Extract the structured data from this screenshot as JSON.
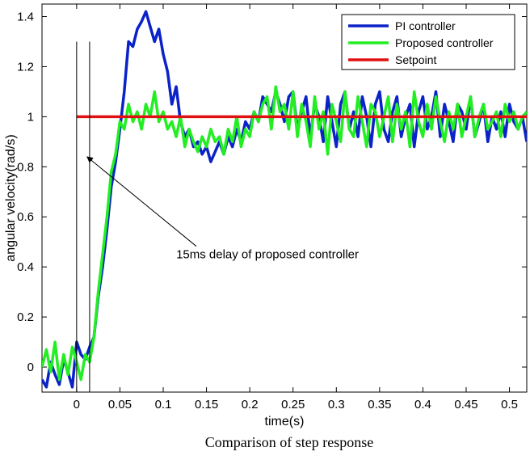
{
  "chart_data": {
    "type": "line",
    "title": "",
    "caption": "Comparison of step response",
    "xlabel": "time(s)",
    "ylabel": "angular velocity(rad/s)",
    "xlim": [
      -0.04,
      0.52
    ],
    "ylim": [
      -0.1,
      1.45
    ],
    "xticks": [
      0,
      0.05,
      0.1,
      0.15,
      0.2,
      0.25,
      0.3,
      0.35,
      0.4,
      0.45,
      0.5
    ],
    "xtick_labels": [
      "0",
      "0.05",
      "0.1",
      "0.15",
      "0.2",
      "0.25",
      "0.3",
      "0.35",
      "0.4",
      "0.45",
      "0.5"
    ],
    "yticks": [
      0,
      0.2,
      0.4,
      0.6,
      0.8,
      1,
      1.2,
      1.4
    ],
    "ytick_labels": [
      "0",
      "0.2",
      "0.4",
      "0.6",
      "0.8",
      "1",
      "1.2",
      "1.4"
    ],
    "grid": false,
    "legend_position": "top-right",
    "series": [
      {
        "name": "PI controller",
        "color": "#0a22c8",
        "x": [
          -0.04,
          -0.035,
          -0.03,
          -0.025,
          -0.02,
          -0.015,
          -0.01,
          -0.005,
          0,
          0.005,
          0.01,
          0.015,
          0.02,
          0.025,
          0.03,
          0.035,
          0.04,
          0.045,
          0.05,
          0.055,
          0.06,
          0.065,
          0.07,
          0.075,
          0.08,
          0.085,
          0.09,
          0.095,
          0.1,
          0.105,
          0.11,
          0.115,
          0.12,
          0.125,
          0.13,
          0.135,
          0.14,
          0.145,
          0.15,
          0.155,
          0.16,
          0.165,
          0.17,
          0.175,
          0.18,
          0.185,
          0.19,
          0.195,
          0.2,
          0.205,
          0.21,
          0.215,
          0.22,
          0.225,
          0.23,
          0.235,
          0.24,
          0.245,
          0.25,
          0.255,
          0.26,
          0.265,
          0.27,
          0.275,
          0.28,
          0.285,
          0.29,
          0.295,
          0.3,
          0.305,
          0.31,
          0.315,
          0.32,
          0.325,
          0.33,
          0.335,
          0.34,
          0.345,
          0.35,
          0.355,
          0.36,
          0.365,
          0.37,
          0.375,
          0.38,
          0.385,
          0.39,
          0.395,
          0.4,
          0.405,
          0.41,
          0.415,
          0.42,
          0.425,
          0.43,
          0.435,
          0.44,
          0.445,
          0.45,
          0.455,
          0.46,
          0.465,
          0.47,
          0.475,
          0.48,
          0.485,
          0.49,
          0.495,
          0.5,
          0.505,
          0.51,
          0.515,
          0.52
        ],
        "y": [
          -0.05,
          -0.08,
          0.02,
          -0.03,
          -0.07,
          0.03,
          -0.02,
          -0.08,
          0.1,
          0.05,
          0.03,
          0.08,
          0.12,
          0.28,
          0.4,
          0.55,
          0.72,
          0.82,
          0.95,
          1.1,
          1.3,
          1.28,
          1.35,
          1.38,
          1.42,
          1.36,
          1.3,
          1.35,
          1.25,
          1.18,
          1.05,
          1.12,
          0.98,
          0.92,
          0.95,
          0.88,
          0.9,
          0.85,
          0.88,
          0.82,
          0.86,
          0.9,
          0.85,
          0.92,
          0.88,
          0.95,
          0.9,
          0.98,
          0.95,
          1.02,
          0.98,
          1.08,
          1.05,
          1.02,
          1.1,
          1.05,
          0.98,
          1.08,
          1.1,
          0.95,
          1.02,
          1.08,
          0.92,
          1.05,
          1,
          0.9,
          1.08,
          0.98,
          0.88,
          1.05,
          1.1,
          0.95,
          1.02,
          0.92,
          1.08,
          1,
          0.88,
          1.05,
          1.1,
          0.95,
          0.9,
          1.02,
          1.08,
          0.92,
          1,
          1.05,
          0.88,
          1.02,
          1.08,
          0.95,
          1,
          1.1,
          0.92,
          1.05,
          0.98,
          0.9,
          1.05,
          1.02,
          0.95,
          1.08,
          0.92,
          0.98,
          1.05,
          0.9,
          1,
          0.95,
          1.02,
          0.92,
          1.05,
          0.98,
          0.95,
          1,
          0.9
        ]
      },
      {
        "name": "Proposed controller",
        "color": "#22ee22",
        "x": [
          -0.04,
          -0.035,
          -0.03,
          -0.025,
          -0.02,
          -0.015,
          -0.01,
          -0.005,
          0,
          0.005,
          0.01,
          0.015,
          0.02,
          0.025,
          0.03,
          0.035,
          0.04,
          0.045,
          0.05,
          0.055,
          0.06,
          0.065,
          0.07,
          0.075,
          0.08,
          0.085,
          0.09,
          0.095,
          0.1,
          0.105,
          0.11,
          0.115,
          0.12,
          0.125,
          0.13,
          0.135,
          0.14,
          0.145,
          0.15,
          0.155,
          0.16,
          0.165,
          0.17,
          0.175,
          0.18,
          0.185,
          0.19,
          0.195,
          0.2,
          0.205,
          0.21,
          0.215,
          0.22,
          0.225,
          0.23,
          0.235,
          0.24,
          0.245,
          0.25,
          0.255,
          0.26,
          0.265,
          0.27,
          0.275,
          0.28,
          0.285,
          0.29,
          0.295,
          0.3,
          0.305,
          0.31,
          0.315,
          0.32,
          0.325,
          0.33,
          0.335,
          0.34,
          0.345,
          0.35,
          0.355,
          0.36,
          0.365,
          0.37,
          0.375,
          0.38,
          0.385,
          0.39,
          0.395,
          0.4,
          0.405,
          0.41,
          0.415,
          0.42,
          0.425,
          0.43,
          0.435,
          0.44,
          0.445,
          0.45,
          0.455,
          0.46,
          0.465,
          0.47,
          0.475,
          0.48,
          0.485,
          0.49,
          0.495,
          0.5,
          0.505,
          0.51,
          0.515,
          0.52
        ],
        "y": [
          0,
          0.07,
          -0.02,
          0.1,
          -0.05,
          0.05,
          -0.03,
          0.08,
          0.02,
          -0.05,
          0.05,
          0.02,
          0.12,
          0.3,
          0.45,
          0.6,
          0.78,
          0.85,
          0.98,
          0.95,
          1.05,
          0.98,
          1.02,
          0.95,
          1.05,
          1,
          1.1,
          0.98,
          1.02,
          0.95,
          0.98,
          0.92,
          1,
          0.88,
          0.95,
          0.9,
          0.86,
          0.92,
          0.88,
          0.95,
          0.9,
          0.92,
          0.85,
          0.95,
          0.9,
          1,
          0.88,
          0.95,
          0.92,
          1.02,
          0.98,
          1.05,
          1.08,
          0.95,
          1.12,
          1.02,
          1.05,
          0.95,
          1.1,
          0.92,
          1.05,
          0.98,
          0.88,
          1.08,
          0.95,
          1.02,
          0.85,
          1.05,
          0.98,
          0.9,
          1.1,
          0.95,
          0.92,
          1.08,
          0.98,
          0.88,
          1.05,
          1.02,
          0.92,
          1,
          1.08,
          0.9,
          1.05,
          0.95,
          1.02,
          0.88,
          1.1,
          0.98,
          0.92,
          1.05,
          0.95,
          1.08,
          0.98,
          0.9,
          1.02,
          0.95,
          1.05,
          0.92,
          1,
          1.08,
          0.92,
          1,
          1.05,
          0.95,
          0.98,
          1.02,
          0.92,
          1.05,
          0.98,
          1.02,
          0.95,
          1,
          1.02
        ]
      },
      {
        "name": "Setpoint",
        "color": "#e01010",
        "x": [
          0,
          0.52
        ],
        "y": [
          1,
          1
        ]
      }
    ],
    "markers": [
      {
        "type": "vline",
        "x": 0,
        "color": "#000000"
      },
      {
        "type": "vline",
        "x": 0.015,
        "color": "#000000"
      }
    ],
    "annotations": [
      {
        "text": "15ms delay of proposed controller",
        "x": 0.115,
        "y": 0.45,
        "arrow_to": [
          0.012,
          0.84
        ]
      }
    ]
  }
}
